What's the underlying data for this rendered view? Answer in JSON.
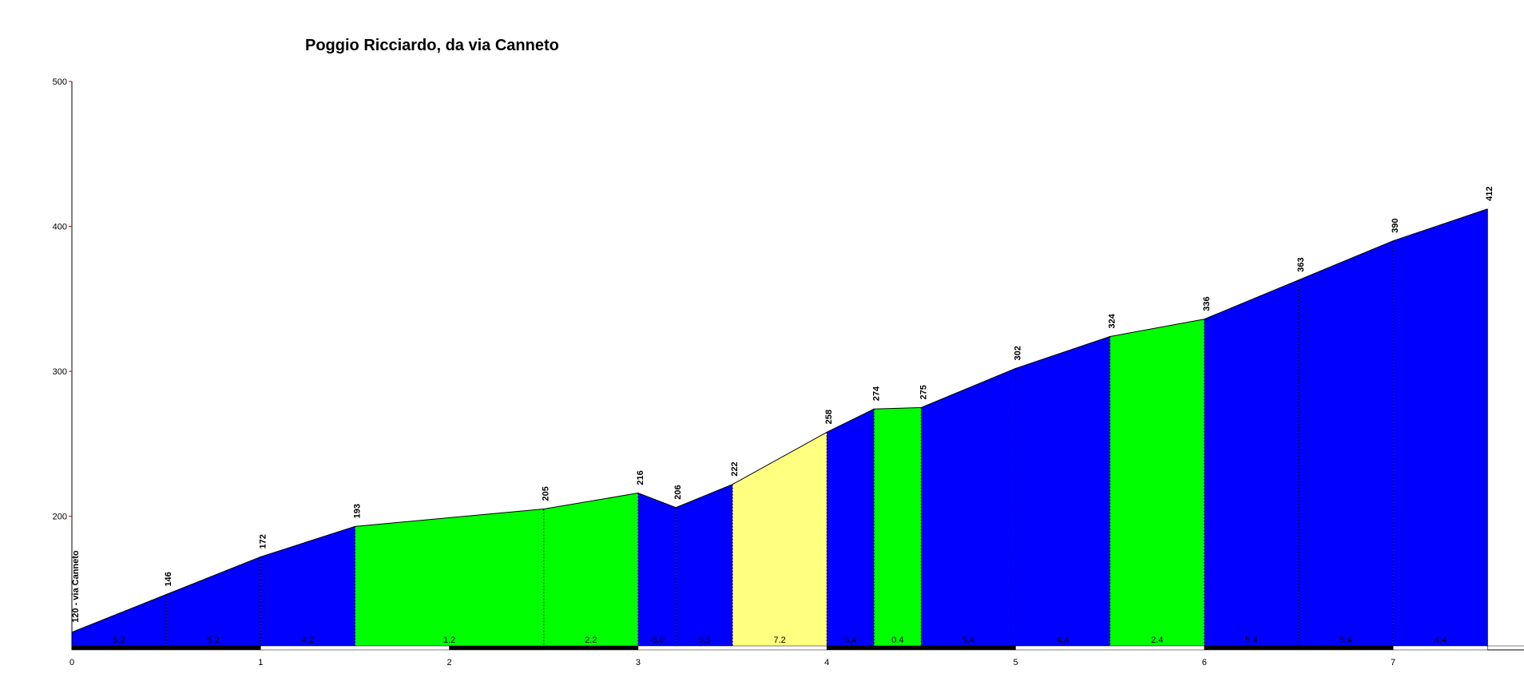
{
  "chart_data": {
    "type": "area",
    "title": "Poggio Ricciardo, da via Canneto",
    "xlabel": "",
    "ylabel": "",
    "xlim": [
      0,
      7.5
    ],
    "ylim": [
      110,
      500
    ],
    "x_ticks": [
      0,
      1,
      2,
      3,
      4,
      5,
      6,
      7
    ],
    "x_tick_labels": [
      "0",
      "1",
      "2",
      "3",
      "4",
      "5",
      "6",
      "7"
    ],
    "y_ticks": [
      200,
      300,
      400,
      500
    ],
    "y_tick_labels": [
      "200",
      "300",
      "400",
      "500"
    ],
    "profile": [
      {
        "x": 0.0,
        "y": 120,
        "label": "120 - via Canneto"
      },
      {
        "x": 0.5,
        "y": 146,
        "label": "146"
      },
      {
        "x": 1.0,
        "y": 172,
        "label": "172"
      },
      {
        "x": 1.5,
        "y": 193,
        "label": "193"
      },
      {
        "x": 2.5,
        "y": 205,
        "label": "205"
      },
      {
        "x": 3.0,
        "y": 216,
        "label": "216"
      },
      {
        "x": 3.2,
        "y": 206,
        "label": "206"
      },
      {
        "x": 3.5,
        "y": 222,
        "label": "222"
      },
      {
        "x": 4.0,
        "y": 258,
        "label": "258"
      },
      {
        "x": 4.25,
        "y": 274,
        "label": "274"
      },
      {
        "x": 4.5,
        "y": 275,
        "label": "275"
      },
      {
        "x": 5.0,
        "y": 302,
        "label": "302"
      },
      {
        "x": 5.5,
        "y": 324,
        "label": "324"
      },
      {
        "x": 6.0,
        "y": 336,
        "label": "336"
      },
      {
        "x": 6.5,
        "y": 363,
        "label": "363"
      },
      {
        "x": 7.0,
        "y": 390,
        "label": "390"
      },
      {
        "x": 7.5,
        "y": 412,
        "label": "412"
      }
    ],
    "segments": [
      {
        "x0": 0.0,
        "x1": 0.5,
        "gradient": "5.2",
        "color": "#0000ff"
      },
      {
        "x0": 0.5,
        "x1": 1.0,
        "gradient": "5.2",
        "color": "#0000ff"
      },
      {
        "x0": 1.0,
        "x1": 1.5,
        "gradient": "4.2",
        "color": "#0000ff"
      },
      {
        "x0": 1.5,
        "x1": 2.5,
        "gradient": "1.2",
        "color": "#00ff00"
      },
      {
        "x0": 2.5,
        "x1": 3.0,
        "gradient": "2.2",
        "color": "#00ff00"
      },
      {
        "x0": 3.0,
        "x1": 3.2,
        "gradient": "-5.0",
        "color": "#0000ff"
      },
      {
        "x0": 3.2,
        "x1": 3.5,
        "gradient": "5.3",
        "color": "#0000ff"
      },
      {
        "x0": 3.5,
        "x1": 4.0,
        "gradient": "7.2",
        "color": "#ffff80"
      },
      {
        "x0": 4.0,
        "x1": 4.25,
        "gradient": "6.4",
        "color": "#0000ff"
      },
      {
        "x0": 4.25,
        "x1": 4.5,
        "gradient": "0.4",
        "color": "#00ff00"
      },
      {
        "x0": 4.5,
        "x1": 5.0,
        "gradient": "5.4",
        "color": "#0000ff"
      },
      {
        "x0": 5.0,
        "x1": 5.5,
        "gradient": "4.4",
        "color": "#0000ff"
      },
      {
        "x0": 5.5,
        "x1": 6.0,
        "gradient": "2.4",
        "color": "#00ff00"
      },
      {
        "x0": 6.0,
        "x1": 6.5,
        "gradient": "5.4",
        "color": "#0000ff"
      },
      {
        "x0": 6.5,
        "x1": 7.0,
        "gradient": "5.4",
        "color": "#0000ff"
      },
      {
        "x0": 7.0,
        "x1": 7.5,
        "gradient": "4.4",
        "color": "#0000ff"
      }
    ],
    "colors": {
      "axis": "#000000",
      "y_tick_mark": "#cc0000",
      "distance_bar_dark": "#000000",
      "distance_bar_light": "#ffffff"
    },
    "grid": false,
    "legend": "none"
  }
}
